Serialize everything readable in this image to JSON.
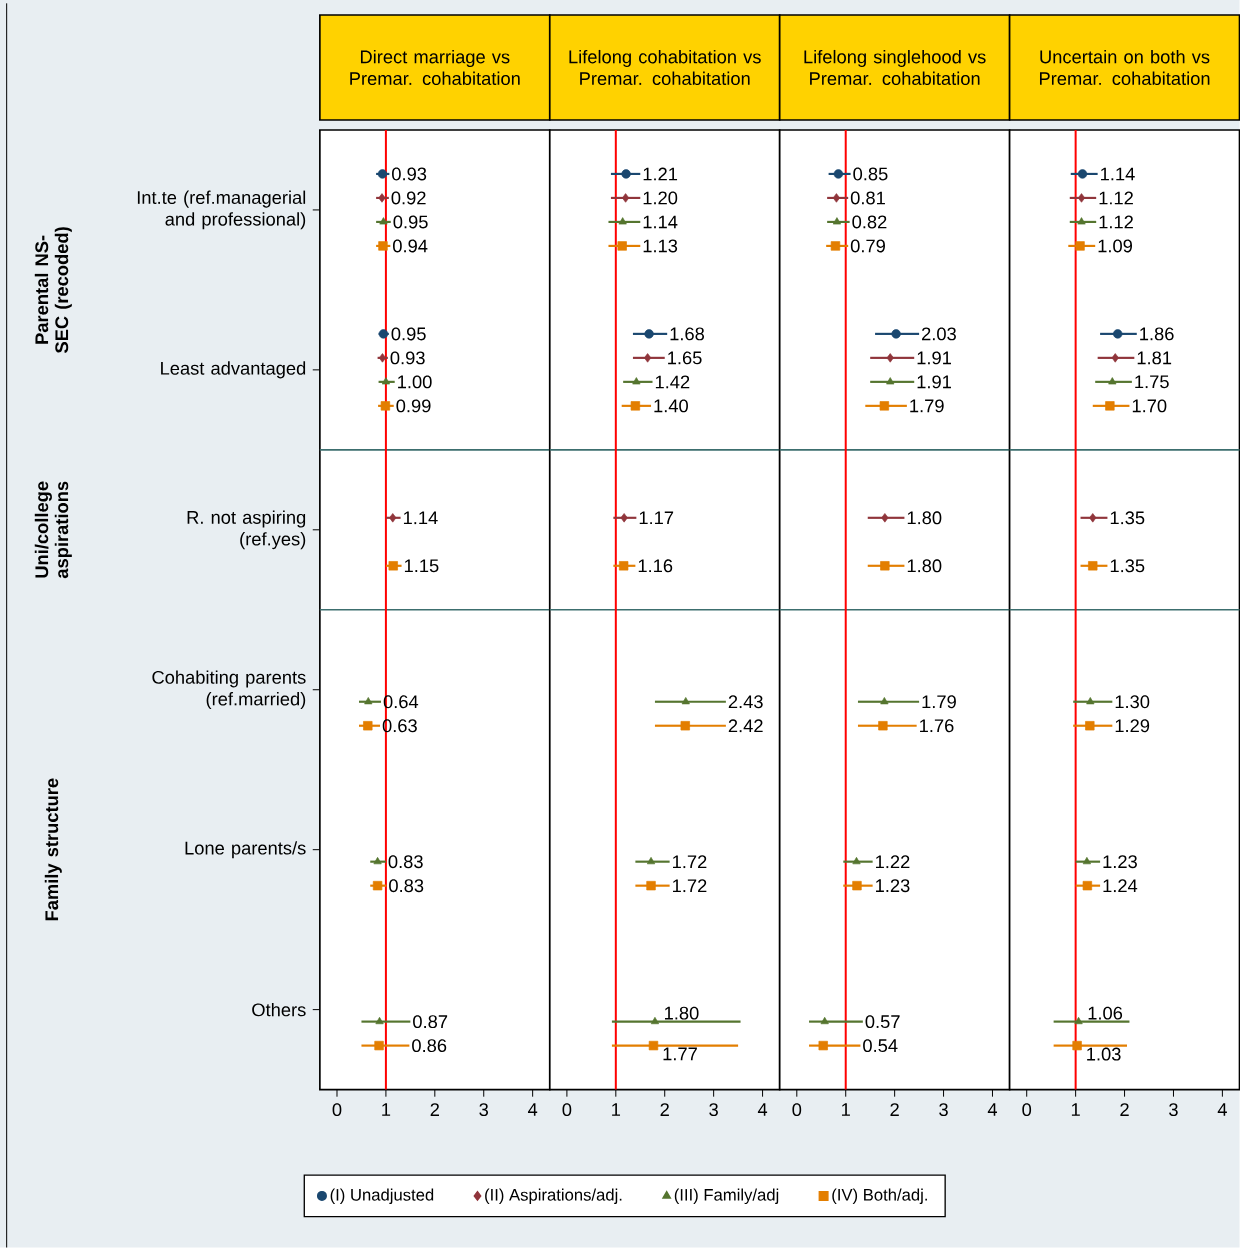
{
  "chart_data": [
    {
      "type": "scatter",
      "orientation": "horizontal",
      "title": "Direct marriage vs Premar. cohabitation",
      "categories": [
        "Int.te (ref.managerial and professional)",
        "Least advantaged",
        "R. not aspiring (ref.yes)",
        "Cohabiting parents (ref.married)",
        "Lone parents/s",
        "Others"
      ],
      "xlim": [
        -0.35,
        4.35
      ],
      "xticks": [
        0,
        1,
        2,
        3,
        4
      ],
      "legend": "bottom",
      "ref_lines": [
        {
          "axis": "x",
          "value": 1,
          "color": "#ff0000"
        }
      ],
      "annotations": [
        "Parental NS-SEC (recoded)",
        "Uni/college aspirations",
        "Family structure"
      ],
      "series": [
        {
          "name": "(I) Unadjusted",
          "color": "#1a476f",
          "marker": "circle",
          "values": [
            0.93,
            0.95,
            null,
            null,
            null,
            null
          ],
          "errors": [
            [
              0.8,
              1.07
            ],
            [
              0.85,
              1.06
            ],
            null,
            null,
            null,
            null
          ],
          "value_labels": [
            "0.93",
            "0.95",
            null,
            null,
            null,
            null
          ]
        },
        {
          "name": "(II) Aspirations/adj.",
          "color": "#90353b",
          "marker": "diamond",
          "values": [
            0.92,
            0.93,
            1.14,
            null,
            null,
            null
          ],
          "errors": [
            [
              0.8,
              1.06
            ],
            [
              0.83,
              1.04
            ],
            [
              1.0,
              1.3
            ],
            null,
            null,
            null
          ],
          "value_labels": [
            "0.92",
            "0.93",
            "1.14",
            null,
            null,
            null
          ]
        },
        {
          "name": "(III) Family/adj",
          "color": "#55752f",
          "marker": "triangle",
          "values": [
            0.95,
            1.0,
            null,
            0.64,
            0.83,
            0.87
          ],
          "errors": [
            [
              0.8,
              1.1
            ],
            [
              0.85,
              1.18
            ],
            null,
            [
              0.45,
              0.9
            ],
            [
              0.68,
              1.0
            ],
            [
              0.5,
              1.5
            ]
          ],
          "value_labels": [
            "0.95",
            "1.00",
            null,
            "0.64",
            "0.83",
            "0.87"
          ]
        },
        {
          "name": "(IV) Both/adj.",
          "color": "#e37e00",
          "marker": "square",
          "values": [
            0.94,
            0.99,
            1.15,
            0.63,
            0.83,
            0.86
          ],
          "errors": [
            [
              0.8,
              1.09
            ],
            [
              0.84,
              1.16
            ],
            [
              1.0,
              1.32
            ],
            [
              0.45,
              0.88
            ],
            [
              0.68,
              1.01
            ],
            [
              0.5,
              1.48
            ]
          ],
          "value_labels": [
            "0.94",
            "0.99",
            "1.15",
            "0.63",
            "0.83",
            "0.86"
          ]
        }
      ]
    },
    {
      "type": "scatter",
      "orientation": "horizontal",
      "title": "Lifelong cohabitation vs Premar. cohabitation",
      "categories": [
        null,
        null,
        null,
        null,
        null,
        null
      ],
      "tick_labels": "x",
      "xlim": [
        -0.35,
        4.35
      ],
      "xticks": [
        0,
        1,
        2,
        3,
        4
      ],
      "ref_lines": [
        {
          "axis": "x",
          "value": 1,
          "color": "#ff0000"
        }
      ],
      "series": [
        {
          "color": "#1a476f",
          "marker": "circle",
          "values": [
            1.21,
            1.68,
            null,
            null,
            null,
            null
          ],
          "errors": [
            [
              0.9,
              1.5
            ],
            [
              1.35,
              2.05
            ],
            null,
            null,
            null,
            null
          ],
          "value_labels": [
            "1.21",
            "1.68",
            null,
            null,
            null,
            null
          ]
        },
        {
          "color": "#90353b",
          "marker": "diamond",
          "values": [
            1.2,
            1.65,
            1.17,
            null,
            null,
            null
          ],
          "errors": [
            [
              0.9,
              1.5
            ],
            [
              1.35,
              2.0
            ],
            [
              0.95,
              1.42
            ],
            null,
            null,
            null
          ],
          "value_labels": [
            "1.20",
            "1.65",
            "1.17",
            null,
            null,
            null
          ]
        },
        {
          "color": "#55752f",
          "marker": "triangle",
          "values": [
            1.14,
            1.42,
            null,
            2.43,
            1.72,
            1.8
          ],
          "errors": [
            [
              0.85,
              1.5
            ],
            [
              1.15,
              1.75
            ],
            null,
            [
              1.8,
              3.25
            ],
            [
              1.4,
              2.1
            ],
            [
              0.92,
              3.55
            ]
          ],
          "value_labels": [
            "1.14",
            "1.42",
            null,
            "2.43",
            "1.72",
            "1.80"
          ]
        },
        {
          "color": "#e37e00",
          "marker": "square",
          "values": [
            1.13,
            1.4,
            1.16,
            2.42,
            1.72,
            1.77
          ],
          "errors": [
            [
              0.85,
              1.5
            ],
            [
              1.12,
              1.72
            ],
            [
              0.95,
              1.4
            ],
            [
              1.8,
              3.25
            ],
            [
              1.4,
              2.1
            ],
            [
              0.92,
              3.5
            ]
          ],
          "value_labels": [
            "1.13",
            "1.40",
            "1.16",
            "2.42",
            "1.72",
            "1.77"
          ]
        }
      ]
    },
    {
      "type": "scatter",
      "orientation": "horizontal",
      "title": "Lifelong singlehood vs Premar. cohabitation",
      "categories": [
        null,
        null,
        null,
        null,
        null,
        null
      ],
      "tick_labels": "x",
      "xlim": [
        -0.35,
        4.35
      ],
      "xticks": [
        0,
        1,
        2,
        3,
        4
      ],
      "ref_lines": [
        {
          "axis": "x",
          "value": 1,
          "color": "#ff0000"
        }
      ],
      "series": [
        {
          "color": "#1a476f",
          "marker": "circle",
          "values": [
            0.85,
            2.03,
            null,
            null,
            null,
            null
          ],
          "errors": [
            [
              0.65,
              1.1
            ],
            [
              1.6,
              2.5
            ],
            null,
            null,
            null,
            null
          ],
          "value_labels": [
            "0.85",
            "2.03",
            null,
            null,
            null,
            null
          ]
        },
        {
          "color": "#90353b",
          "marker": "diamond",
          "values": [
            0.81,
            1.91,
            1.8,
            null,
            null,
            null
          ],
          "errors": [
            [
              0.62,
              1.05
            ],
            [
              1.5,
              2.4
            ],
            [
              1.45,
              2.2
            ],
            null,
            null,
            null
          ],
          "value_labels": [
            "0.81",
            "1.91",
            "1.80",
            null,
            null,
            null
          ]
        },
        {
          "color": "#55752f",
          "marker": "triangle",
          "values": [
            0.82,
            1.91,
            null,
            1.79,
            1.22,
            0.57
          ],
          "errors": [
            [
              0.62,
              1.08
            ],
            [
              1.5,
              2.4
            ],
            null,
            [
              1.25,
              2.5
            ],
            [
              0.95,
              1.55
            ],
            [
              0.25,
              1.35
            ]
          ],
          "value_labels": [
            "0.82",
            "1.91",
            null,
            "1.79",
            "1.22",
            "0.57"
          ]
        },
        {
          "color": "#e37e00",
          "marker": "square",
          "values": [
            0.79,
            1.79,
            1.8,
            1.76,
            1.23,
            0.54
          ],
          "errors": [
            [
              0.6,
              1.05
            ],
            [
              1.4,
              2.25
            ],
            [
              1.45,
              2.2
            ],
            [
              1.25,
              2.45
            ],
            [
              0.95,
              1.55
            ],
            [
              0.25,
              1.3
            ]
          ],
          "value_labels": [
            "0.79",
            "1.79",
            "1.80",
            "1.76",
            "1.23",
            "0.54"
          ]
        }
      ]
    },
    {
      "type": "scatter",
      "orientation": "horizontal",
      "title": "Uncertain on both vs Premar. cohabitation",
      "categories": [
        null,
        null,
        null,
        null,
        null,
        null
      ],
      "tick_labels": "x",
      "xlim": [
        -0.35,
        4.35
      ],
      "xticks": [
        0,
        1,
        2,
        3,
        4
      ],
      "ref_lines": [
        {
          "axis": "x",
          "value": 1,
          "color": "#ff0000"
        }
      ],
      "series": [
        {
          "color": "#1a476f",
          "marker": "circle",
          "values": [
            1.14,
            1.86,
            null,
            null,
            null,
            null
          ],
          "errors": [
            [
              0.9,
              1.45
            ],
            [
              1.5,
              2.25
            ],
            null,
            null,
            null,
            null
          ],
          "value_labels": [
            "1.14",
            "1.86",
            null,
            null,
            null,
            null
          ]
        },
        {
          "color": "#90353b",
          "marker": "diamond",
          "values": [
            1.12,
            1.81,
            1.35,
            null,
            null,
            null
          ],
          "errors": [
            [
              0.88,
              1.42
            ],
            [
              1.45,
              2.2
            ],
            [
              1.1,
              1.65
            ],
            null,
            null,
            null
          ],
          "value_labels": [
            "1.12",
            "1.81",
            "1.35",
            null,
            null,
            null
          ]
        },
        {
          "color": "#55752f",
          "marker": "triangle",
          "values": [
            1.12,
            1.75,
            null,
            1.3,
            1.23,
            1.06
          ],
          "errors": [
            [
              0.88,
              1.42
            ],
            [
              1.4,
              2.15
            ],
            null,
            [
              0.95,
              1.75
            ],
            [
              1.0,
              1.5
            ],
            [
              0.55,
              2.1
            ]
          ],
          "value_labels": [
            "1.12",
            "1.75",
            null,
            "1.30",
            "1.23",
            "1.06"
          ]
        },
        {
          "color": "#e37e00",
          "marker": "square",
          "values": [
            1.09,
            1.7,
            1.35,
            1.29,
            1.24,
            1.03
          ],
          "errors": [
            [
              0.85,
              1.4
            ],
            [
              1.35,
              2.1
            ],
            [
              1.1,
              1.65
            ],
            [
              0.95,
              1.75
            ],
            [
              1.0,
              1.5
            ],
            [
              0.55,
              2.05
            ]
          ],
          "value_labels": [
            "1.09",
            "1.70",
            "1.35",
            "1.29",
            "1.24",
            "1.03"
          ]
        }
      ]
    }
  ]
}
